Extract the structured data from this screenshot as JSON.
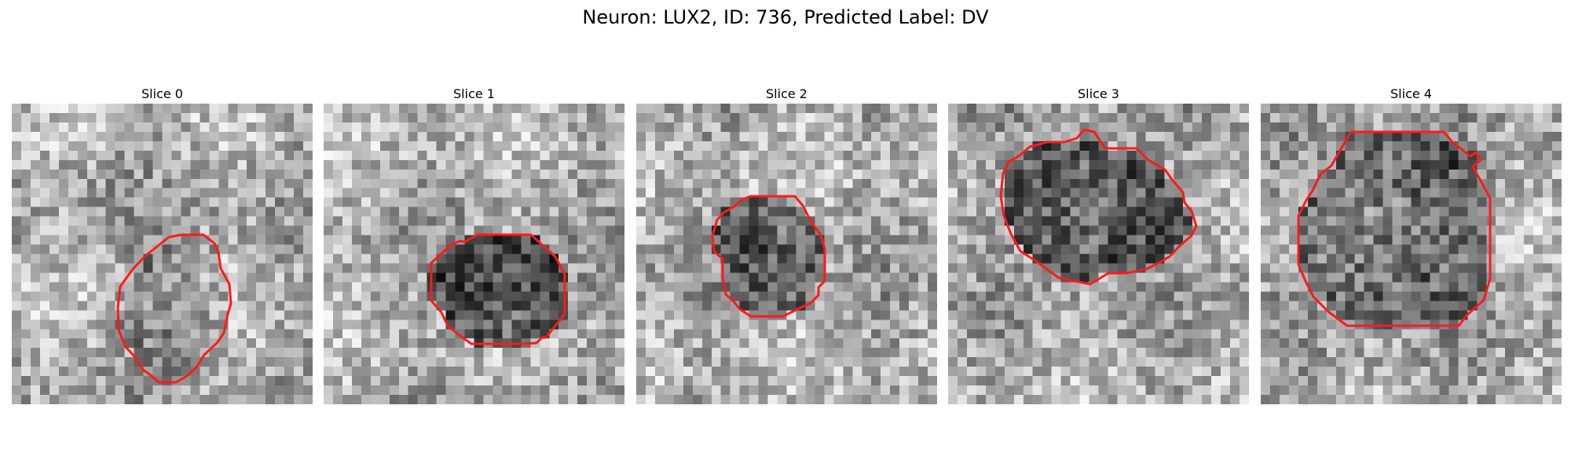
{
  "figure": {
    "title": "Neuron: LUX2, ID: 736, Predicted Label: DV"
  },
  "panels": [
    {
      "title": "Slice 0"
    },
    {
      "title": "Slice 1"
    },
    {
      "title": "Slice 2"
    },
    {
      "title": "Slice 3"
    },
    {
      "title": "Slice 4"
    }
  ],
  "colors": {
    "contour": "#ff1a1a",
    "colormap": "gray"
  }
}
